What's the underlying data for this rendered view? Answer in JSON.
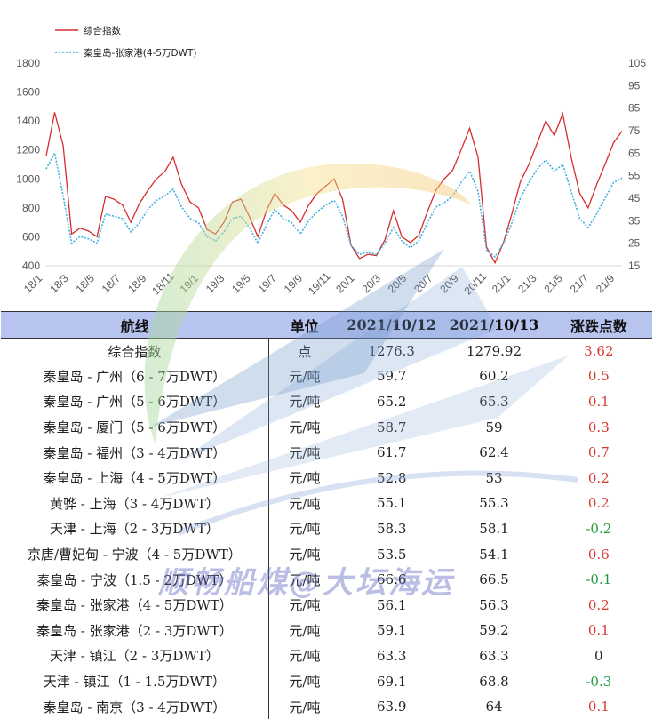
{
  "chart_data": {
    "type": "line",
    "legend": [
      "综合指数",
      "秦皇岛-张家港(4-5万DWT)"
    ],
    "colors": {
      "composite": "#d62d2d",
      "qhd_zjg": "#3fb0e0"
    },
    "y_left": {
      "ticks": [
        "1800",
        "1600",
        "1400",
        "1200",
        "1000",
        "800",
        "600",
        "400"
      ],
      "range": [
        400,
        1800
      ]
    },
    "y_right": {
      "ticks": [
        "105",
        "95",
        "85",
        "75",
        "65",
        "55",
        "45",
        "35",
        "25",
        "15"
      ],
      "range": [
        15,
        105
      ]
    },
    "x_ticks": [
      "18/1",
      "18/3",
      "18/5",
      "18/7",
      "18/9",
      "18/11",
      "19/1",
      "19/3",
      "19/5",
      "19/7",
      "19/9",
      "19/11",
      "20/1",
      "20/3",
      "20/5",
      "20/7",
      "20/9",
      "20/11",
      "21/1",
      "21/3",
      "21/5",
      "21/7",
      "21/9"
    ],
    "series": [
      {
        "name": "综合指数",
        "axis": "left",
        "values": [
          1160,
          1460,
          1230,
          620,
          660,
          640,
          600,
          880,
          860,
          820,
          700,
          830,
          920,
          1000,
          1050,
          1150,
          960,
          840,
          800,
          650,
          620,
          700,
          840,
          860,
          740,
          600,
          780,
          900,
          820,
          780,
          700,
          820,
          900,
          950,
          1000,
          860,
          540,
          450,
          480,
          470,
          580,
          780,
          600,
          560,
          610,
          770,
          920,
          1000,
          1060,
          1200,
          1350,
          1150,
          530,
          420,
          560,
          760,
          980,
          1100,
          1250,
          1400,
          1300,
          1450,
          1150,
          900,
          800,
          960,
          1100,
          1250,
          1330
        ]
      },
      {
        "name": "秦皇岛-张家港(4-5万DWT)",
        "axis": "right",
        "values": [
          58,
          65,
          46,
          25,
          28,
          27,
          25,
          38,
          37,
          36,
          30,
          34,
          40,
          44,
          46,
          49,
          41,
          36,
          34,
          28,
          26,
          30,
          36,
          37,
          32,
          25,
          33,
          40,
          36,
          34,
          29,
          35,
          39,
          42,
          44,
          37,
          24,
          20,
          21,
          20,
          25,
          32,
          26,
          23,
          26,
          34,
          41,
          43,
          46,
          52,
          57,
          48,
          22,
          19,
          25,
          34,
          45,
          52,
          58,
          62,
          57,
          60,
          48,
          36,
          32,
          38,
          45,
          52,
          54
        ]
      }
    ]
  },
  "table": {
    "headers": [
      "航线",
      "单位",
      "2021/10/12",
      "2021/10/13",
      "涨跌点数"
    ],
    "rows": [
      {
        "route": "综合指数",
        "unit": "点",
        "v1": "1276.3",
        "v2": "1279.92",
        "chg": "3.62",
        "dir": "up"
      },
      {
        "route": "秦皇岛 - 广州（6 - 7万DWT）",
        "unit": "元/吨",
        "v1": "59.7",
        "v2": "60.2",
        "chg": "0.5",
        "dir": "up"
      },
      {
        "route": "秦皇岛 - 广州（5 - 6万DWT）",
        "unit": "元/吨",
        "v1": "65.2",
        "v2": "65.3",
        "chg": "0.1",
        "dir": "up"
      },
      {
        "route": "秦皇岛 - 厦门（5 - 6万DWT）",
        "unit": "元/吨",
        "v1": "58.7",
        "v2": "59",
        "chg": "0.3",
        "dir": "up"
      },
      {
        "route": "秦皇岛 - 福州（3 - 4万DWT）",
        "unit": "元/吨",
        "v1": "61.7",
        "v2": "62.4",
        "chg": "0.7",
        "dir": "up"
      },
      {
        "route": "秦皇岛 - 上海（4 - 5万DWT）",
        "unit": "元/吨",
        "v1": "52.8",
        "v2": "53",
        "chg": "0.2",
        "dir": "up"
      },
      {
        "route": "黄骅 - 上海（3 - 4万DWT）",
        "unit": "元/吨",
        "v1": "55.1",
        "v2": "55.3",
        "chg": "0.2",
        "dir": "up"
      },
      {
        "route": "天津 - 上海（2 - 3万DWT）",
        "unit": "元/吨",
        "v1": "58.3",
        "v2": "58.1",
        "chg": "-0.2",
        "dir": "down"
      },
      {
        "route": "京唐/曹妃甸 - 宁波（4 - 5万DWT）",
        "unit": "元/吨",
        "v1": "53.5",
        "v2": "54.1",
        "chg": "0.6",
        "dir": "up"
      },
      {
        "route": "秦皇岛 - 宁波（1.5 - 2万DWT）",
        "unit": "元/吨",
        "v1": "66.6",
        "v2": "66.5",
        "chg": "-0.1",
        "dir": "down"
      },
      {
        "route": "秦皇岛 - 张家港（4 - 5万DWT）",
        "unit": "元/吨",
        "v1": "56.1",
        "v2": "56.3",
        "chg": "0.2",
        "dir": "up"
      },
      {
        "route": "秦皇岛 - 张家港（2 - 3万DWT）",
        "unit": "元/吨",
        "v1": "59.1",
        "v2": "59.2",
        "chg": "0.1",
        "dir": "up"
      },
      {
        "route": "天津 - 镇江（2 - 3万DWT）",
        "unit": "元/吨",
        "v1": "63.3",
        "v2": "63.3",
        "chg": "0",
        "dir": "flat"
      },
      {
        "route": "天津 - 镇江（1 - 1.5万DWT）",
        "unit": "元/吨",
        "v1": "69.1",
        "v2": "68.8",
        "chg": "-0.3",
        "dir": "down"
      },
      {
        "route": "秦皇岛 - 南京（3 - 4万DWT）",
        "unit": "元/吨",
        "v1": "63.9",
        "v2": "64",
        "chg": "0.1",
        "dir": "up"
      }
    ]
  },
  "watermark": "顺畅船煤@大坛海运"
}
